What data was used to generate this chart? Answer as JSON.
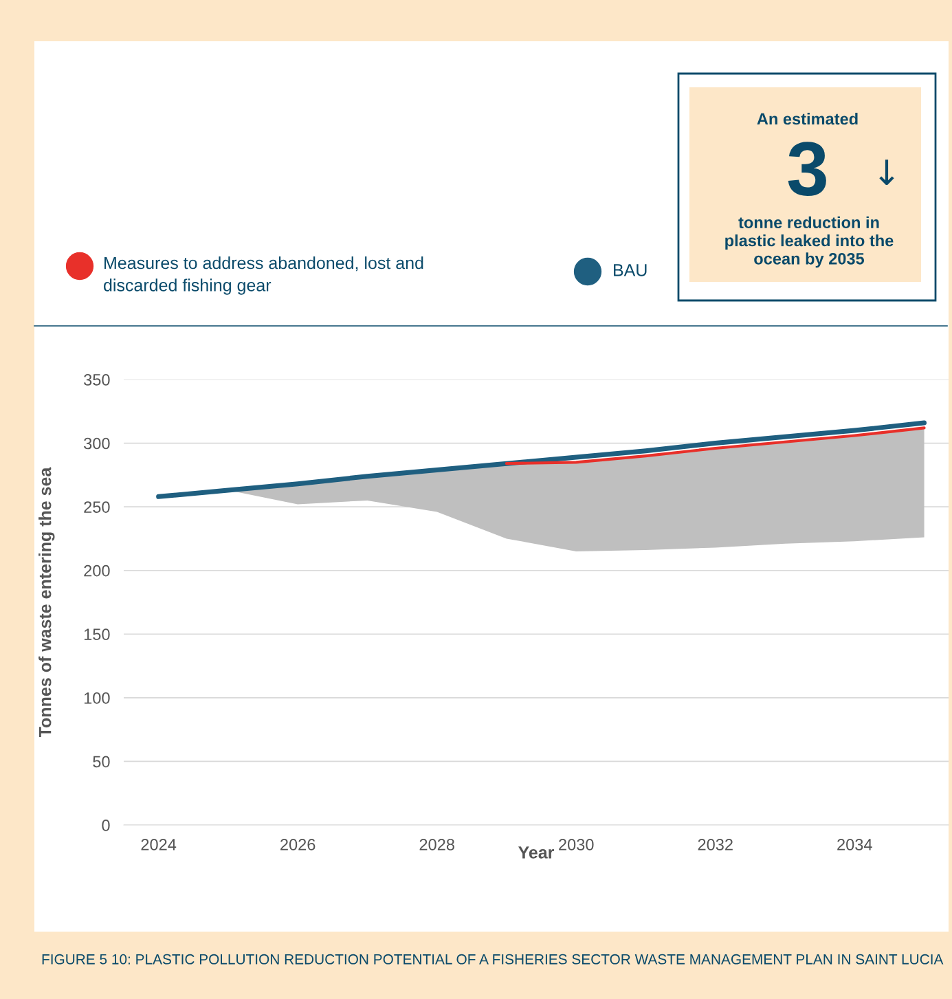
{
  "chart_data": {
    "type": "line",
    "xlabel": "Year",
    "ylabel": "Tonnes of waste entering the sea",
    "x": [
      2024,
      2025,
      2026,
      2027,
      2028,
      2029,
      2030,
      2031,
      2032,
      2033,
      2034,
      2035
    ],
    "series": [
      {
        "name": "Measures to address abandoned, lost and discarded fishing gear",
        "color": "#e8302a",
        "values": [
          null,
          null,
          null,
          null,
          null,
          284,
          285,
          290,
          296,
          301,
          306,
          312
        ],
        "lower": [
          null,
          263,
          252,
          255,
          246,
          225,
          215,
          216,
          218,
          221,
          223,
          226
        ],
        "upper": [
          null,
          263,
          268,
          274,
          279,
          284,
          285,
          290,
          296,
          301,
          306,
          312
        ]
      },
      {
        "name": "BAU",
        "color": "#1f5f80",
        "values": [
          258,
          263,
          268,
          274,
          279,
          284,
          289,
          294,
          300,
          305,
          310,
          316
        ]
      }
    ],
    "xlim": [
      2023.5,
      2035.35
    ],
    "xticks": [
      2024,
      2026,
      2028,
      2030,
      2032,
      2034
    ],
    "ylim": [
      0,
      350
    ],
    "yticks": [
      0,
      50,
      100,
      150,
      200,
      250,
      300,
      350
    ],
    "grid": "y",
    "legend": "top left",
    "marker": "none",
    "line_style": "solid",
    "annotations": [
      "An estimated",
      "3",
      "↓",
      "tonne reduction in\nplastic leaked into the\nocean by 2035",
      "FIGURE 5 10: PLASTIC POLLUTION REDUCTION POTENTIAL OF A FISHERIES SECTOR WASTE MANAGEMENT PLAN IN SAINT LUCIA"
    ]
  }
}
